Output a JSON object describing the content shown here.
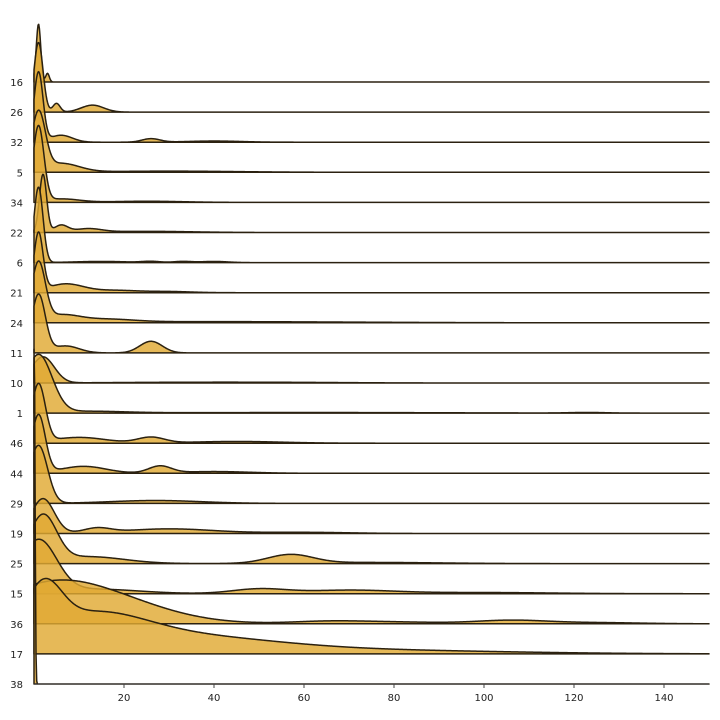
{
  "chart_data": {
    "type": "area",
    "subtype": "ridgeline-density",
    "title": "",
    "xlabel": "",
    "ylabel": "",
    "xlim": [
      0,
      150
    ],
    "xticks": [
      20,
      40,
      60,
      80,
      100,
      120,
      140
    ],
    "grid": false,
    "legend": "none",
    "fill_color": "#e0aa33",
    "line_color": "#2b2110",
    "series": [
      {
        "name": "16",
        "peaks": [
          [
            1,
            1.0,
            0.5,
            1.0
          ],
          [
            3,
            0.6,
            0.4,
            0.15
          ]
        ]
      },
      {
        "name": "26",
        "peaks": [
          [
            1,
            1.0,
            1.0,
            1.2
          ],
          [
            5,
            0.3,
            0.8,
            0.15
          ],
          [
            13,
            0.25,
            2.5,
            0.12
          ]
        ]
      },
      {
        "name": "32",
        "peaks": [
          [
            1,
            1.0,
            1.0,
            1.2
          ],
          [
            6,
            0.25,
            2.5,
            0.12
          ],
          [
            26,
            0.15,
            2.0,
            0.06
          ],
          [
            40,
            0.03,
            6.0,
            0.02
          ]
        ]
      },
      {
        "name": "5",
        "peaks": [
          [
            1,
            1.0,
            1.5,
            1.0
          ],
          [
            6,
            0.3,
            4.0,
            0.15
          ],
          [
            30,
            0.03,
            15.0,
            0.02
          ]
        ]
      },
      {
        "name": "34",
        "peaks": [
          [
            1,
            1.0,
            1.2,
            1.3
          ],
          [
            6,
            0.15,
            4.0,
            0.06
          ],
          [
            25,
            0.03,
            8.0,
            0.02
          ]
        ]
      },
      {
        "name": "22",
        "peaks": [
          [
            2,
            1.0,
            0.8,
            1.0
          ],
          [
            6,
            0.4,
            1.5,
            0.12
          ],
          [
            12,
            0.12,
            3.0,
            0.06
          ],
          [
            25,
            0.04,
            10.0,
            0.02
          ]
        ]
      },
      {
        "name": "6",
        "peaks": [
          [
            1,
            1.0,
            1.0,
            1.3
          ],
          [
            15,
            0.06,
            6.0,
            0.02
          ],
          [
            26,
            0.08,
            2.0,
            0.02
          ],
          [
            33,
            0.08,
            2.0,
            0.02
          ],
          [
            40,
            0.04,
            3.0,
            0.02
          ]
        ]
      },
      {
        "name": "21",
        "peaks": [
          [
            1,
            1.0,
            1.0,
            1.0
          ],
          [
            7,
            0.35,
            4.0,
            0.15
          ],
          [
            18,
            0.08,
            5.0,
            0.04
          ],
          [
            30,
            0.05,
            5.0,
            0.02
          ]
        ]
      },
      {
        "name": "24",
        "peaks": [
          [
            1,
            1.0,
            1.5,
            1.0
          ],
          [
            6,
            0.35,
            4.0,
            0.12
          ],
          [
            16,
            0.08,
            6.0,
            0.05
          ],
          [
            40,
            0.02,
            30.0,
            0.02
          ]
        ]
      },
      {
        "name": "11",
        "peaks": [
          [
            1,
            1.0,
            1.5,
            1.0
          ],
          [
            7,
            0.3,
            3.0,
            0.12
          ],
          [
            26,
            0.5,
            2.5,
            0.2
          ]
        ]
      },
      {
        "name": "10",
        "peaks": [
          [
            2,
            1.0,
            2.5,
            0.45
          ],
          [
            30,
            0.06,
            15.0,
            0.01
          ],
          [
            55,
            0.04,
            15.0,
            0.01
          ]
        ]
      },
      {
        "name": "1",
        "peaks": [
          [
            1,
            1.0,
            3.0,
            1.0
          ],
          [
            12,
            0.04,
            8.0,
            0.03
          ],
          [
            60,
            0.03,
            30.0,
            0.01
          ],
          [
            123,
            0.04,
            4.0,
            0.01
          ]
        ]
      },
      {
        "name": "46",
        "peaks": [
          [
            1,
            1.0,
            1.5,
            1.0
          ],
          [
            10,
            0.2,
            6.0,
            0.1
          ],
          [
            26,
            0.25,
            3.0,
            0.1
          ],
          [
            45,
            0.04,
            10.0,
            0.03
          ]
        ]
      },
      {
        "name": "44",
        "peaks": [
          [
            1,
            1.0,
            1.5,
            1.0
          ],
          [
            11,
            0.25,
            5.0,
            0.12
          ],
          [
            28,
            0.3,
            2.5,
            0.12
          ],
          [
            40,
            0.05,
            8.0,
            0.03
          ]
        ]
      },
      {
        "name": "29",
        "peaks": [
          [
            1,
            1.0,
            2.0,
            1.0
          ],
          [
            27,
            0.14,
            10.0,
            0.05
          ]
        ]
      },
      {
        "name": "19",
        "peaks": [
          [
            2,
            1.0,
            2.5,
            0.6
          ],
          [
            14,
            0.2,
            3.0,
            0.08
          ],
          [
            30,
            0.2,
            10.0,
            0.08
          ],
          [
            60,
            0.05,
            10.0,
            0.02
          ]
        ]
      },
      {
        "name": "25",
        "peaks": [
          [
            2,
            1.0,
            3.0,
            0.8
          ],
          [
            12,
            0.25,
            8.0,
            0.12
          ],
          [
            57,
            0.27,
            5.0,
            0.15
          ],
          [
            75,
            0.04,
            15.0,
            0.02
          ]
        ]
      },
      {
        "name": "15",
        "peaks": [
          [
            1,
            1.0,
            4.0,
            0.9
          ],
          [
            13,
            0.15,
            10.0,
            0.08
          ],
          [
            50,
            0.15,
            6.0,
            0.08
          ],
          [
            70,
            0.1,
            10.0,
            0.06
          ],
          [
            100,
            0.04,
            15.0,
            0.02
          ]
        ]
      },
      {
        "name": "36",
        "peaks": [
          [
            1,
            0.3,
            10.0,
            0.2
          ],
          [
            10,
            1.0,
            15.0,
            0.6
          ],
          [
            65,
            0.12,
            8.0,
            0.04
          ],
          [
            80,
            0.08,
            10.0,
            0.03
          ],
          [
            106,
            0.22,
            8.0,
            0.06
          ],
          [
            125,
            0.04,
            10.0,
            0.02
          ]
        ]
      },
      {
        "name": "17",
        "peaks": [
          [
            2,
            0.4,
            4.0,
            0.8
          ],
          [
            12,
            1.0,
            12.0,
            0.5
          ],
          [
            30,
            0.5,
            22.0,
            0.3
          ],
          [
            75,
            0.1,
            30.0,
            0.06
          ]
        ]
      },
      {
        "name": "38",
        "peaks": [
          [
            0.05,
            1.0,
            0.18,
            6.0
          ]
        ]
      }
    ]
  }
}
